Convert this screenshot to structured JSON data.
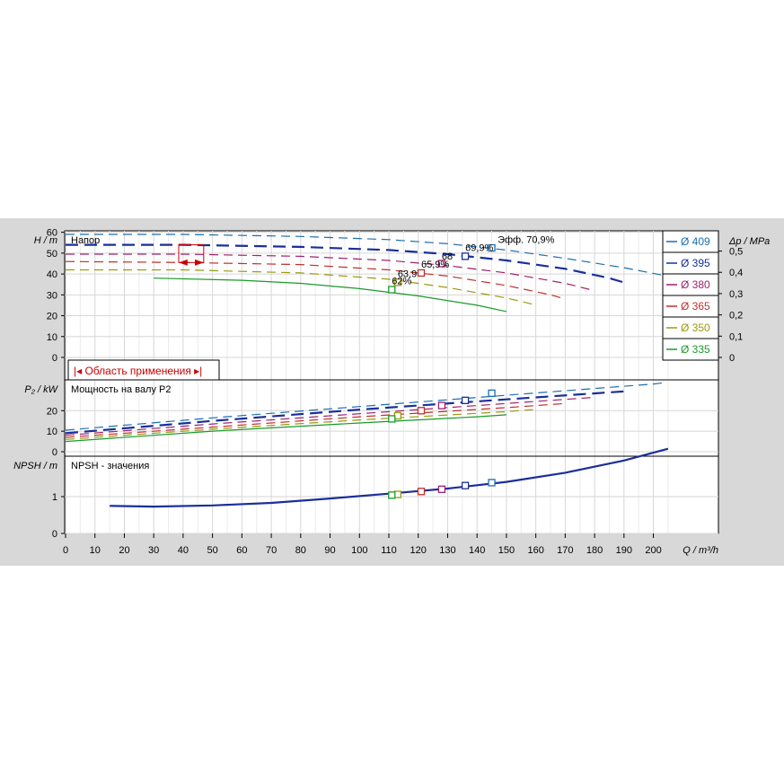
{
  "chart_data": {
    "type": "line",
    "x_axis": {
      "label": "Q / m³/h",
      "range": [
        0,
        220
      ],
      "ticks": [
        0,
        10,
        20,
        30,
        40,
        50,
        60,
        70,
        80,
        90,
        100,
        110,
        120,
        130,
        140,
        150,
        160,
        170,
        180,
        190,
        200
      ]
    },
    "legend": {
      "placement": "top-right",
      "items": [
        {
          "label": "Ø 409",
          "color": "#1a6fb0"
        },
        {
          "label": "Ø 395",
          "color": "#1a2f9a"
        },
        {
          "label": "Ø 380",
          "color": "#a0206e"
        },
        {
          "label": "Ø 365",
          "color": "#c0302a"
        },
        {
          "label": "Ø 350",
          "color": "#9a9a10"
        },
        {
          "label": "Ø 335",
          "color": "#1a9a2a"
        }
      ]
    },
    "panels": [
      {
        "name": "head",
        "title": "Напор",
        "ylabel": "H / m",
        "ylim": [
          0,
          62
        ],
        "yticks": [
          0,
          10,
          20,
          30,
          40,
          50,
          60
        ],
        "ylabel_right": "Δp / MPa",
        "yticks_right": [
          "0",
          "0,1",
          "0,2",
          "0,3",
          "0,4",
          "0,5"
        ],
        "right_tick_values_m": [
          0,
          10.2,
          20.4,
          30.6,
          40.8,
          51
        ],
        "application_range_label": "|◂ Область применения ▸|",
        "efficiency_labels": [
          "Эфф.  70,9%",
          "69,9%",
          "68",
          "65,9%",
          "63,9",
          "62%"
        ],
        "series": [
          {
            "name": "Ø 409",
            "x": [
              0,
              40,
              80,
              110,
              130,
              150,
              170,
              190,
              203
            ],
            "y": [
              59,
              59,
              58,
              56.5,
              54.5,
              51.5,
              47.5,
              43,
              39.5
            ]
          },
          {
            "name": "Ø 395",
            "x": [
              0,
              40,
              80,
              110,
              130,
              150,
              170,
              185,
              191
            ],
            "y": [
              54,
              54,
              53,
              51.5,
              49.5,
              46.5,
              42.5,
              38,
              35.5
            ]
          },
          {
            "name": "Ø 380",
            "x": [
              0,
              40,
              80,
              110,
              130,
              150,
              170,
              180
            ],
            "y": [
              49.5,
              49.5,
              48.5,
              46.5,
              44,
              40.5,
              35.5,
              32
            ]
          },
          {
            "name": "Ø 365",
            "x": [
              0,
              40,
              80,
              110,
              130,
              150,
              165,
              170
            ],
            "y": [
              46,
              45.5,
              44.5,
              42,
              39,
              34.5,
              30,
              28
            ]
          },
          {
            "name": "Ø 350",
            "x": [
              0,
              40,
              80,
              110,
              130,
              150,
              159
            ],
            "y": [
              42,
              42,
              40.5,
              37.5,
              33.5,
              28.5,
              25.5
            ]
          },
          {
            "name": "Ø 335",
            "x": [
              30,
              60,
              80,
              100,
              120,
              140,
              150
            ],
            "y": [
              38,
              37,
              35.5,
              33,
              29.5,
              25,
              22
            ]
          }
        ],
        "operating_points": [
          {
            "series": "Ø 409",
            "x": 145,
            "y": 52.5
          },
          {
            "series": "Ø 395",
            "x": 136,
            "y": 48.5
          },
          {
            "series": "Ø 380",
            "x": 128,
            "y": 45
          },
          {
            "series": "Ø 365",
            "x": 121,
            "y": 40.5
          },
          {
            "series": "Ø 350",
            "x": 113,
            "y": 36
          },
          {
            "series": "Ø 335",
            "x": 111,
            "y": 32.5
          }
        ]
      },
      {
        "name": "power",
        "title": "Мощность на валу P2",
        "ylabel": "P₂ / kW",
        "ylim": [
          0,
          35
        ],
        "yticks": [
          0,
          10,
          20
        ],
        "series": [
          {
            "name": "Ø 409",
            "x": [
              0,
              50,
              100,
              150,
              200,
              203
            ],
            "y": [
              10.5,
              16.5,
              22,
              27.5,
              33,
              33.5
            ]
          },
          {
            "name": "Ø 395",
            "x": [
              0,
              50,
              100,
              150,
              191
            ],
            "y": [
              9,
              15,
              20.5,
              25.5,
              29.5
            ]
          },
          {
            "name": "Ø 380",
            "x": [
              0,
              50,
              100,
              150,
              180
            ],
            "y": [
              8,
              13.5,
              18.5,
              23.5,
              26.5
            ]
          },
          {
            "name": "Ø 365",
            "x": [
              0,
              50,
              100,
              150,
              170
            ],
            "y": [
              7,
              12,
              17,
              21.5,
              23.5
            ]
          },
          {
            "name": "Ø 350",
            "x": [
              0,
              50,
              100,
              150,
              159
            ],
            "y": [
              6,
              11,
              15.5,
              19.5,
              20.5
            ]
          },
          {
            "name": "Ø 335",
            "x": [
              0,
              50,
              100,
              140,
              150
            ],
            "y": [
              5,
              10,
              14,
              17,
              18
            ]
          }
        ],
        "operating_points": [
          {
            "series": "Ø 409",
            "x": 145,
            "y": 28.5
          },
          {
            "series": "Ø 395",
            "x": 136,
            "y": 25
          },
          {
            "series": "Ø 380",
            "x": 128,
            "y": 22.5
          },
          {
            "series": "Ø 365",
            "x": 121,
            "y": 20
          },
          {
            "series": "Ø 350",
            "x": 113,
            "y": 17.5
          },
          {
            "series": "Ø 335",
            "x": 111,
            "y": 16
          }
        ]
      },
      {
        "name": "npsh",
        "title": "NPSH - значения",
        "ylabel": "NPSH / m",
        "ylim": [
          0,
          2
        ],
        "yticks": [
          0,
          1
        ],
        "series": [
          {
            "name": "NPSH",
            "x": [
              15,
              30,
              50,
              70,
              90,
              110,
              130,
              150,
              170,
              190,
              205
            ],
            "y": [
              0.75,
              0.73,
              0.76,
              0.83,
              0.95,
              1.08,
              1.22,
              1.4,
              1.65,
              1.98,
              2.3
            ]
          }
        ],
        "operating_points": [
          {
            "series": "Ø 409",
            "x": 145,
            "y": 1.38
          },
          {
            "series": "Ø 395",
            "x": 136,
            "y": 1.3
          },
          {
            "series": "Ø 380",
            "x": 128,
            "y": 1.2
          },
          {
            "series": "Ø 365",
            "x": 121,
            "y": 1.14
          },
          {
            "series": "Ø 350",
            "x": 113,
            "y": 1.06
          },
          {
            "series": "Ø 335",
            "x": 111,
            "y": 1.04
          }
        ]
      }
    ]
  }
}
